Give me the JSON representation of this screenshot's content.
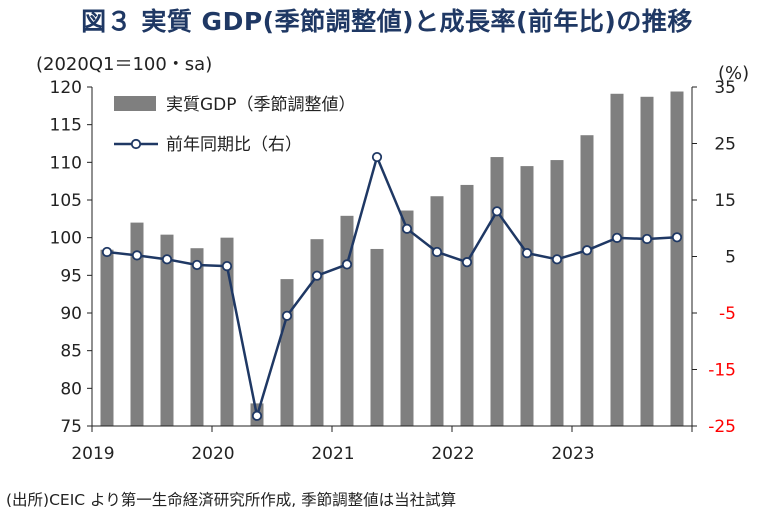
{
  "title": "図３ 実質 GDP(季節調整値)と成長率(前年比)の推移",
  "source": "(出所)CEIC より第一生命経済研究所作成, 季節調整値は当社試算",
  "chart_data": {
    "type": "bar+line",
    "title": "図３ 実質 GDP(季節調整値)と成長率(前年比)の推移",
    "ylabel_left": "(2020Q1＝100・sa)",
    "ylabel_right": "(%)",
    "ylim_left": [
      75,
      120
    ],
    "yticks_left": [
      "120",
      "115",
      "110",
      "105",
      "100",
      "95",
      "90",
      "85",
      "80",
      "75"
    ],
    "ylim_right": [
      -25,
      35
    ],
    "yticks_right": [
      "35",
      "25",
      "15",
      "5",
      "-5",
      "-15",
      "-25"
    ],
    "year_labels": [
      "2019",
      "2020",
      "2021",
      "2022",
      "2023"
    ],
    "categories": [
      "2019Q1",
      "2019Q2",
      "2019Q3",
      "2019Q4",
      "2020Q1",
      "2020Q2",
      "2020Q3",
      "2020Q4",
      "2021Q1",
      "2021Q2",
      "2021Q3",
      "2021Q4",
      "2022Q1",
      "2022Q2",
      "2022Q3",
      "2022Q4",
      "2023Q1",
      "2023Q2",
      "2023Q3",
      "2023Q4"
    ],
    "series": [
      {
        "name": "実質GDP（季節調整値）",
        "type": "bar",
        "axis": "left",
        "color": "#7f7f7f",
        "values": [
          98.4,
          102.0,
          100.4,
          98.6,
          100.0,
          78.0,
          94.5,
          99.8,
          102.9,
          98.5,
          103.6,
          105.5,
          107.0,
          110.7,
          109.5,
          110.3,
          113.6,
          119.1,
          118.7,
          119.4
        ]
      },
      {
        "name": "前年同期比（右）",
        "type": "line",
        "axis": "right",
        "color": "#1f3864",
        "values": [
          5.8,
          5.2,
          4.5,
          3.5,
          3.3,
          -23.2,
          -5.5,
          1.6,
          3.6,
          22.6,
          9.9,
          5.8,
          4.0,
          13.0,
          5.6,
          4.5,
          6.1,
          8.3,
          8.1,
          8.4
        ]
      }
    ],
    "grid": false,
    "legend_position": "top-left"
  },
  "colors": {
    "bar": "#7f7f7f",
    "line": "#1f3864",
    "negative_tick": "#ff0000",
    "title": "#1f3864"
  }
}
